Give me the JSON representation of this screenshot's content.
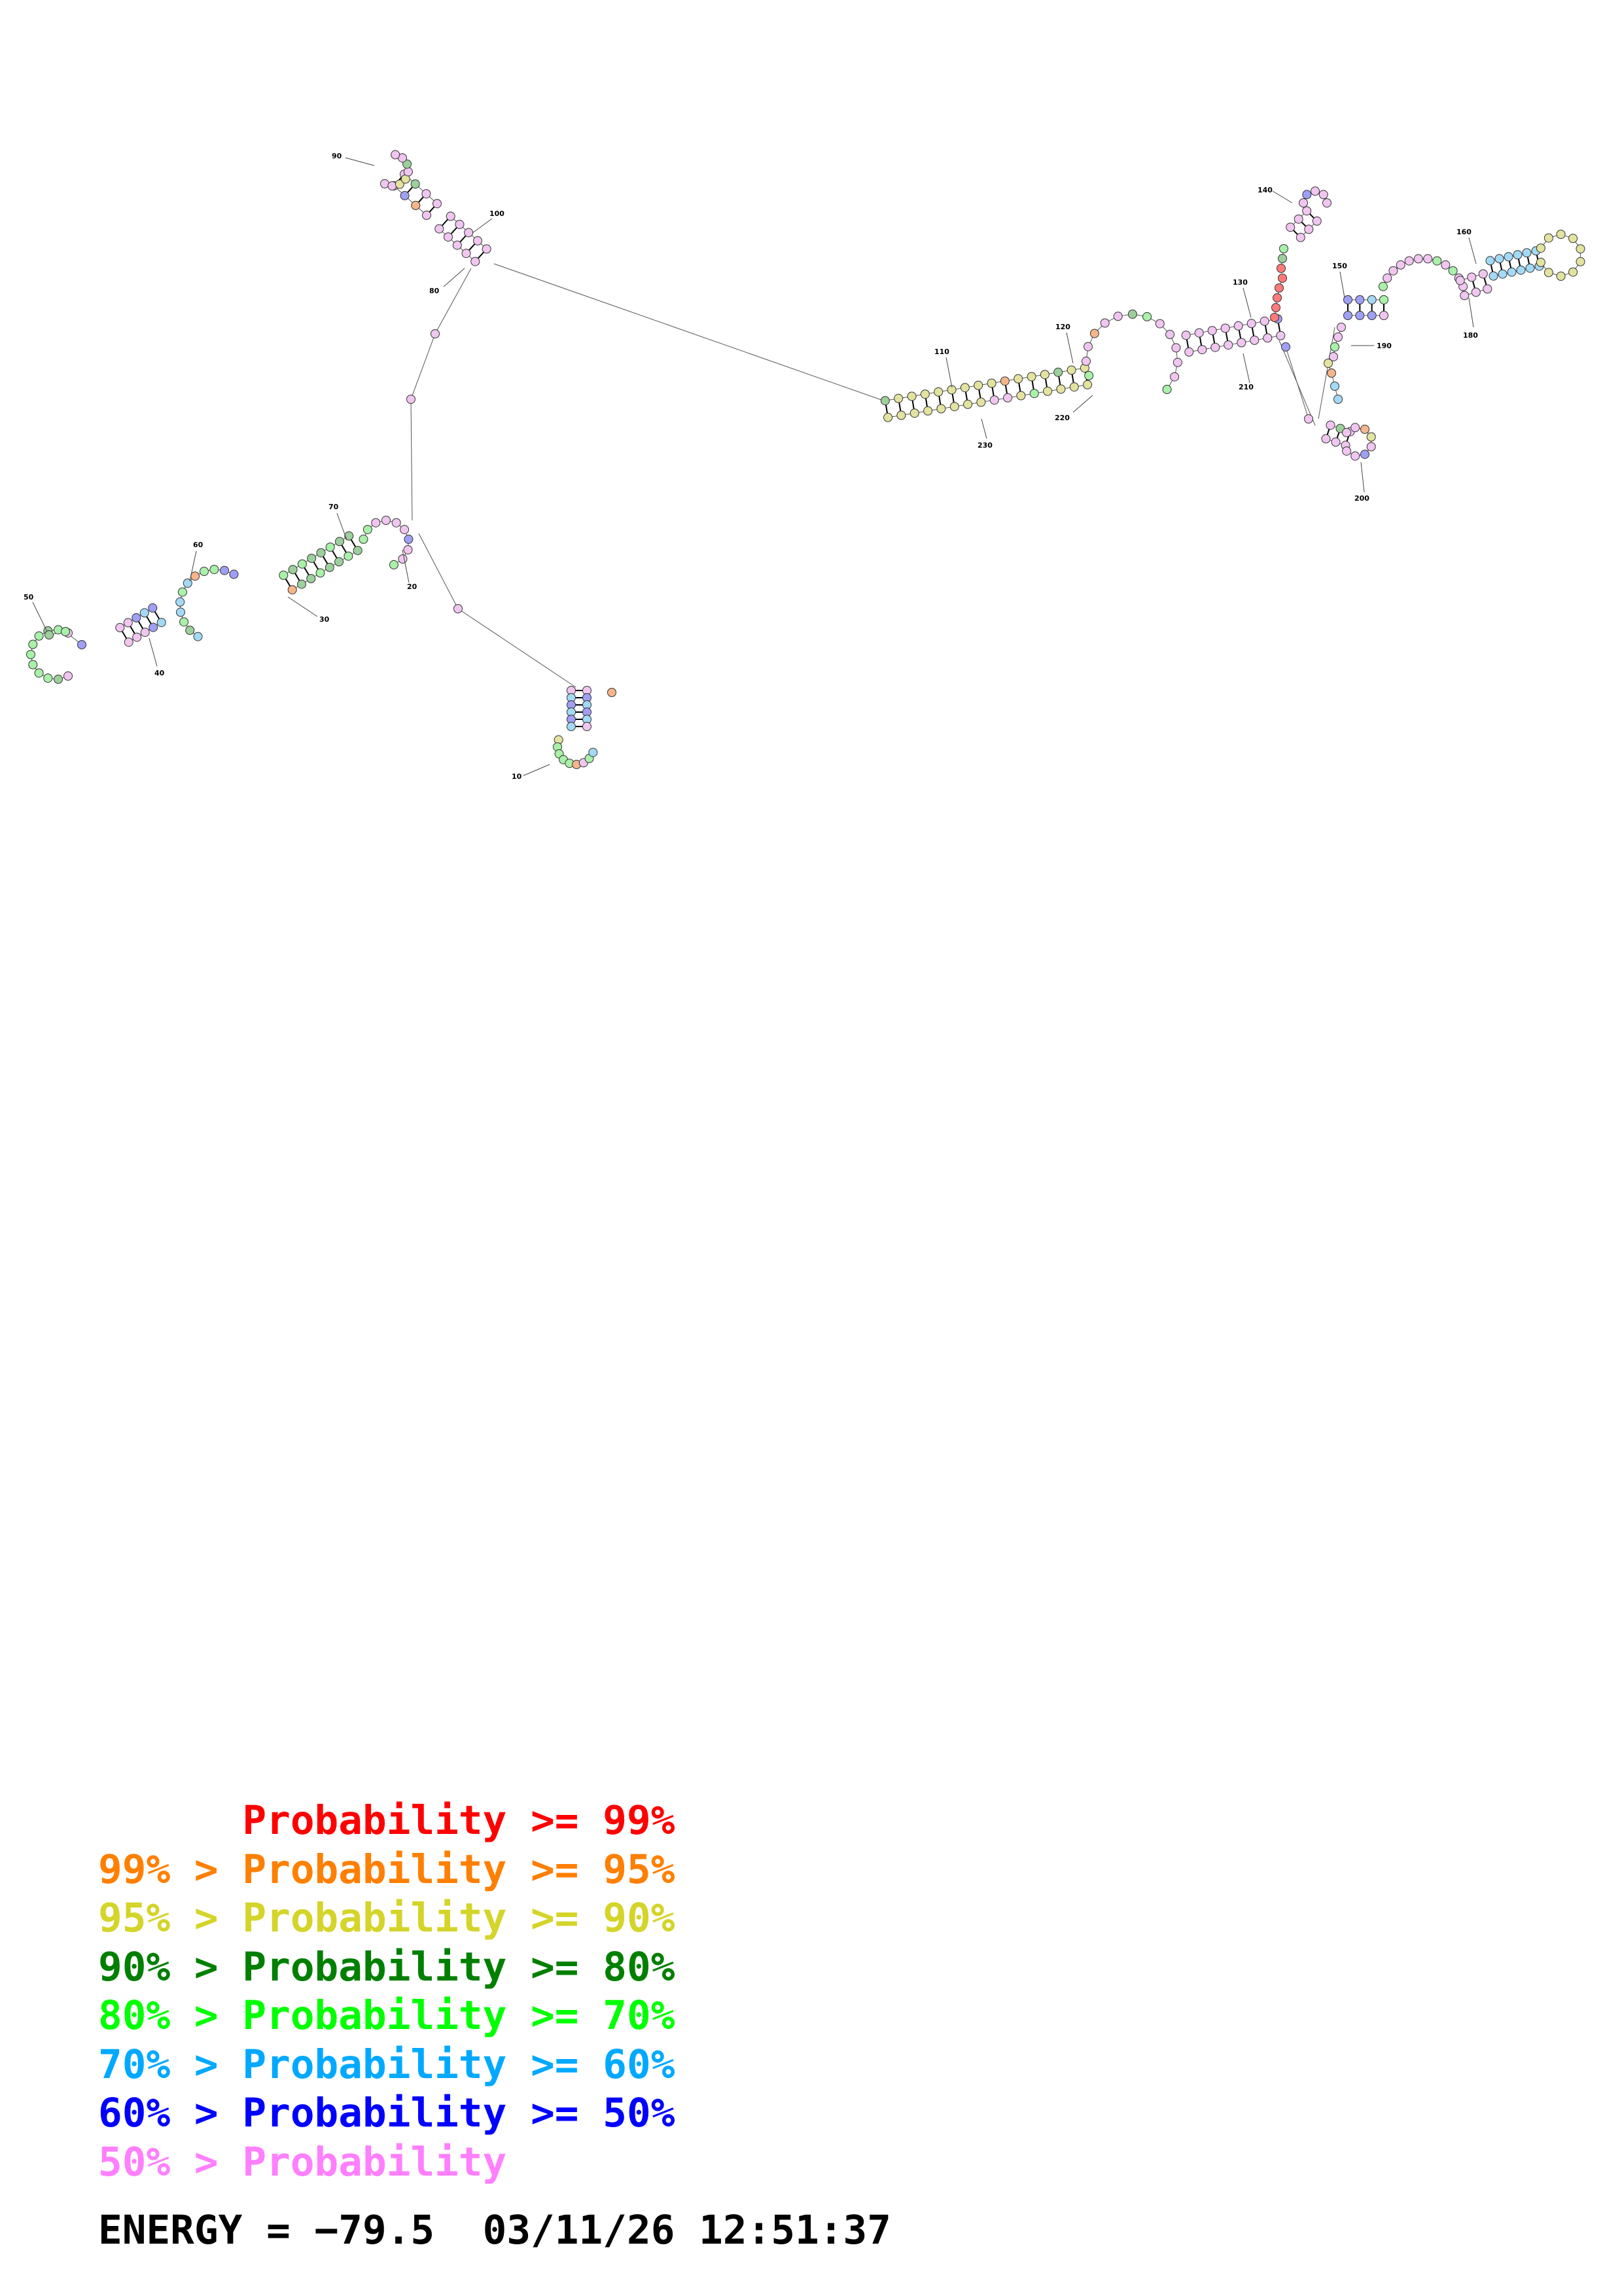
{
  "legend": [
    {
      "prefix": "   ",
      "middle": "   ",
      "label": "Probability",
      "suffix": " >= 99%",
      "color": "#ff0000"
    },
    {
      "prefix": "99%",
      "middle": " > ",
      "label": "Probability",
      "suffix": " >= 95%",
      "color": "#ff7f00"
    },
    {
      "prefix": "95%",
      "middle": " > ",
      "label": "Probability",
      "suffix": " >= 90%",
      "color": "#d4d42a"
    },
    {
      "prefix": "90%",
      "middle": " > ",
      "label": "Probability",
      "suffix": " >= 80%",
      "color": "#007f00"
    },
    {
      "prefix": "80%",
      "middle": " > ",
      "label": "Probability",
      "suffix": " >= 70%",
      "color": "#00ff00"
    },
    {
      "prefix": "70%",
      "middle": " > ",
      "label": "Probability",
      "suffix": " >= 60%",
      "color": "#00a9ff"
    },
    {
      "prefix": "60%",
      "middle": " > ",
      "label": "Probability",
      "suffix": " >= 50%",
      "color": "#0000ff"
    },
    {
      "prefix": "50%",
      "middle": " > ",
      "label": "Probability",
      "suffix": "",
      "color": "#ff7fff"
    }
  ],
  "footer": {
    "energy_label": "ENERGY = ",
    "energy_value": "−79.5",
    "date": "03/11/26",
    "time": "12:51:37"
  },
  "position_labels": [
    "10",
    "20",
    "30",
    "40",
    "50",
    "60",
    "70",
    "80",
    "90",
    "100",
    "110",
    "120",
    "130",
    "140",
    "150",
    "160",
    "180",
    "190",
    "200",
    "210",
    "220",
    "230"
  ],
  "probability_colors": {
    "ge99": "#ff7a7a",
    "ge95": "#f5b58a",
    "ge90": "#e3e3a0",
    "ge80": "#9ccf9c",
    "ge70": "#a9f0a9",
    "ge60": "#a3d9f5",
    "ge50": "#9f9ff5",
    "lt50": "#f0c6f0"
  }
}
